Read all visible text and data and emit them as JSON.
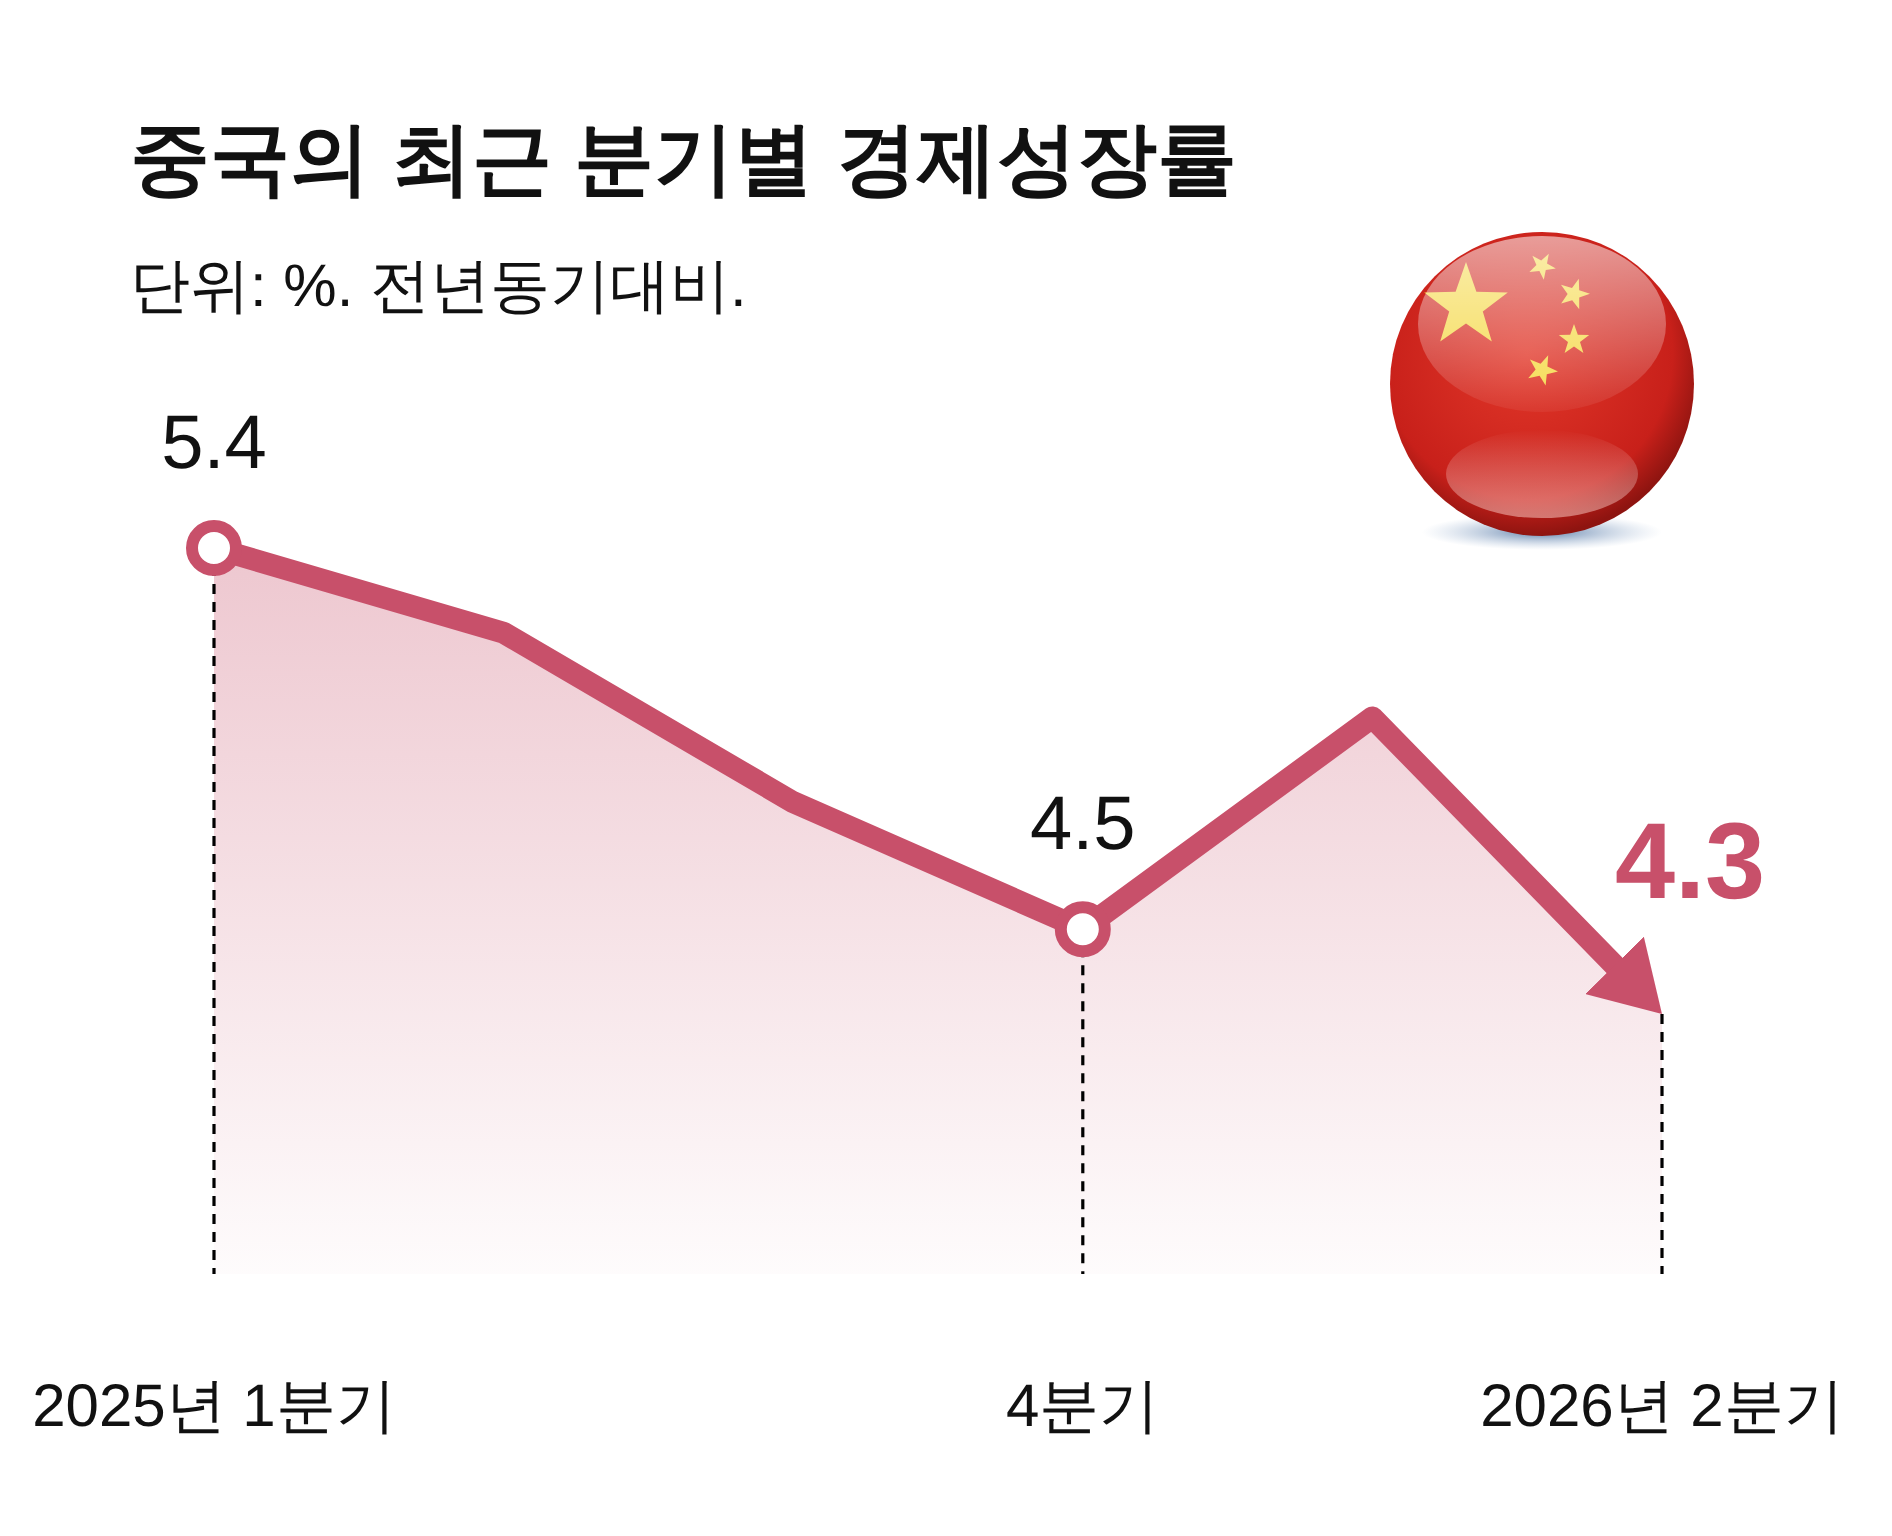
{
  "chart_data": {
    "type": "area",
    "title": "중국의 최근 분기별 경제성장률",
    "subtitle": "단위: %. 전년동기대비.",
    "categories": [
      "2025년 1분기",
      null,
      null,
      "4분기",
      null,
      "2026년 2분기"
    ],
    "series": [
      {
        "color": "#c8506a",
        "values": [
          5.4,
          5.2,
          4.8,
          4.5,
          5.0,
          4.3
        ],
        "value_labels": [
          "5.4",
          null,
          null,
          "4.5",
          null,
          "4.3"
        ]
      }
    ],
    "tick_labels": "x",
    "ref_lines": [
      {
        "axis": "x",
        "value": "2025년 1분기",
        "color": "#000000",
        "line_style": "dashed"
      },
      {
        "axis": "x",
        "value": "4분기",
        "color": "#000000",
        "line_style": "dashed"
      },
      {
        "axis": "x",
        "value": "2026년 2분기",
        "color": "#000000",
        "line_style": "dashed"
      }
    ]
  }
}
